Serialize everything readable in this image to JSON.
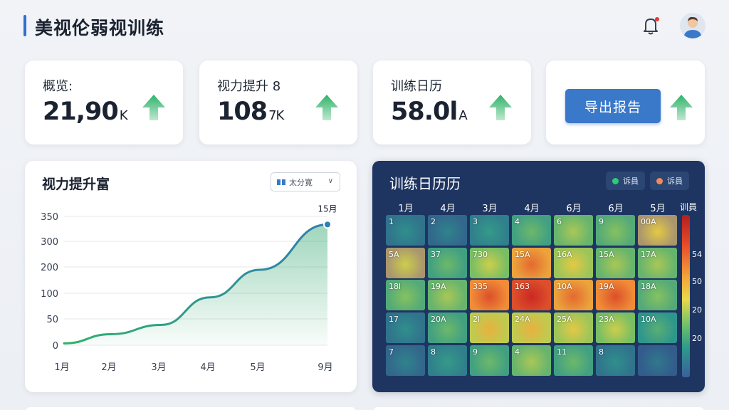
{
  "header": {
    "title": "美视伦弱视训练",
    "icons": [
      "bell-icon",
      "user-avatar-icon"
    ]
  },
  "stats": [
    {
      "label": "概览:",
      "value": "21,90",
      "unit": "K"
    },
    {
      "label": "视力提升 8",
      "value": "108",
      "unit": "7K"
    },
    {
      "label": "训练日历",
      "value": "58.0l",
      "unit": "A"
    }
  ],
  "export": {
    "label": "导出报告"
  },
  "colors": {
    "accent": "#3a78c9",
    "arrow": "#3cb371",
    "line": "#2aa46a",
    "heat_bg": "#1e3561"
  },
  "line_chart": {
    "title": "视力提升富",
    "select_value": "太分寛"
  },
  "chart_data": {
    "type": "area",
    "title": "视力提升富",
    "x": [
      "1月",
      "2月",
      "3月",
      "4月",
      "5月",
      "9月"
    ],
    "series": [
      {
        "values": [
          5,
          30,
          55,
          130,
          205,
          328
        ]
      }
    ],
    "ylim": [
      0,
      350
    ],
    "yticks": [
      "350",
      "300",
      "200",
      "100",
      "50",
      "0"
    ],
    "yticks_values": [
      350,
      300,
      200,
      100,
      50,
      0
    ],
    "end_label": "15月",
    "grid": true
  },
  "heatmap": {
    "title": "训练日历历",
    "legend": [
      {
        "label": "诉員",
        "color": "#2ecc71"
      },
      {
        "label": "诉員",
        "color": "#f08a5d"
      }
    ],
    "months": [
      "1月",
      "4月",
      "3月",
      "4月",
      "6月",
      "6月",
      "5月"
    ],
    "scale_title": "训員",
    "scale_labels": [
      "54",
      "50",
      "20",
      "20"
    ],
    "rows": [
      [
        {
          "t": "1",
          "v": 0.15
        },
        {
          "t": "2",
          "v": 0.1
        },
        {
          "t": "3",
          "v": 0.2
        },
        {
          "t": "4",
          "v": 0.35
        },
        {
          "t": "6",
          "v": 0.45
        },
        {
          "t": "9",
          "v": 0.4
        },
        {
          "t": "00A",
          "v": 0.55,
          "tan": true
        }
      ],
      [
        {
          "t": "5A",
          "v": 0.5,
          "tan": true
        },
        {
          "t": "37",
          "v": 0.35
        },
        {
          "t": "730",
          "v": 0.5
        },
        {
          "t": "15A",
          "v": 0.75
        },
        {
          "t": "16A",
          "v": 0.55
        },
        {
          "t": "15A",
          "v": 0.45
        },
        {
          "t": "17A",
          "v": 0.45
        }
      ],
      [
        {
          "t": "18l",
          "v": 0.4
        },
        {
          "t": "19A",
          "v": 0.45
        },
        {
          "t": "335",
          "v": 0.8
        },
        {
          "t": "163",
          "v": 0.92
        },
        {
          "t": "10A",
          "v": 0.75
        },
        {
          "t": "19A",
          "v": 0.8
        },
        {
          "t": "18A",
          "v": 0.4
        }
      ],
      [
        {
          "t": "17",
          "v": 0.15
        },
        {
          "t": "20A",
          "v": 0.35
        },
        {
          "t": "2l",
          "v": 0.6
        },
        {
          "t": "24A",
          "v": 0.6
        },
        {
          "t": "25A",
          "v": 0.55
        },
        {
          "t": "23A",
          "v": 0.5
        },
        {
          "t": "10A",
          "v": 0.3
        }
      ],
      [
        {
          "t": "7",
          "v": 0.1
        },
        {
          "t": "8",
          "v": 0.2
        },
        {
          "t": "9",
          "v": 0.35
        },
        {
          "t": "4",
          "v": 0.45
        },
        {
          "t": "11",
          "v": 0.35
        },
        {
          "t": "8",
          "v": 0.15
        },
        {
          "t": "",
          "v": 0.05
        }
      ]
    ]
  }
}
